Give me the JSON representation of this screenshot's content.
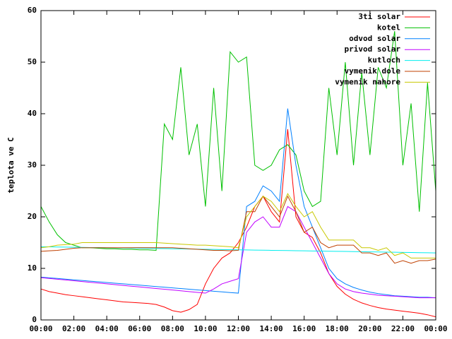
{
  "chart_data": {
    "type": "line",
    "ylabel": "teplota ve C",
    "x": [
      0,
      0.5,
      1,
      1.5,
      2,
      2.5,
      3,
      3.5,
      4,
      4.5,
      5,
      5.5,
      6,
      6.5,
      7,
      7.5,
      8,
      8.5,
      9,
      9.5,
      10,
      10.5,
      11,
      11.5,
      12,
      12.5,
      13,
      13.5,
      14,
      14.5,
      15,
      15.5,
      16,
      16.5,
      17,
      17.5,
      18,
      18.5,
      19,
      19.5,
      20,
      20.5,
      21,
      21.5,
      22,
      22.5,
      23,
      23.5,
      24
    ],
    "xlim": [
      0,
      24
    ],
    "xticks": [
      {
        "value": 0,
        "label": "00:00"
      },
      {
        "value": 2,
        "label": "02:00"
      },
      {
        "value": 4,
        "label": "04:00"
      },
      {
        "value": 6,
        "label": "06:00"
      },
      {
        "value": 8,
        "label": "08:00"
      },
      {
        "value": 10,
        "label": "10:00"
      },
      {
        "value": 12,
        "label": "12:00"
      },
      {
        "value": 14,
        "label": "14:00"
      },
      {
        "value": 16,
        "label": "16:00"
      },
      {
        "value": 18,
        "label": "18:00"
      },
      {
        "value": 20,
        "label": "20:00"
      },
      {
        "value": 22,
        "label": "22:00"
      },
      {
        "value": 24,
        "label": "00:00"
      }
    ],
    "ylim": [
      0,
      60
    ],
    "yticks": [
      0,
      10,
      20,
      30,
      40,
      50,
      60
    ],
    "legend": "top-right",
    "series": [
      {
        "name": "3ti solar",
        "color": "#ff0000",
        "values": [
          6,
          5.5,
          5.2,
          4.9,
          4.7,
          4.5,
          4.3,
          4.1,
          3.9,
          3.7,
          3.5,
          3.4,
          3.3,
          3.2,
          3,
          2.5,
          1.8,
          1.5,
          2,
          3,
          7,
          10,
          12,
          13,
          15,
          18,
          22,
          24,
          21,
          19,
          37,
          20,
          17,
          16,
          13,
          9,
          6.5,
          5,
          4,
          3.3,
          2.8,
          2.4,
          2.1,
          1.9,
          1.7,
          1.5,
          1.3,
          1,
          0.6
        ]
      },
      {
        "name": "kotel",
        "color": "#00c000",
        "values": [
          22,
          19,
          16.5,
          15,
          14.5,
          14,
          14,
          13.9,
          13.8,
          13.8,
          13.7,
          13.7,
          13.6,
          13.6,
          13.5,
          38,
          35,
          49,
          32,
          38,
          22,
          45,
          25,
          52,
          50,
          51,
          30,
          29,
          30,
          33,
          34,
          32,
          25,
          22,
          23,
          45,
          32,
          50,
          30,
          48,
          32,
          49,
          45,
          56,
          30,
          42,
          21,
          46,
          25
        ]
      },
      {
        "name": "odvod solar",
        "color": "#0080ff",
        "values": [
          8.3,
          8.17,
          8.04,
          7.91,
          7.78,
          7.65,
          7.52,
          7.39,
          7.26,
          7.13,
          7.0,
          6.87,
          6.74,
          6.61,
          6.48,
          6.35,
          6.22,
          6.09,
          5.96,
          5.83,
          5.7,
          5.57,
          5.44,
          5.31,
          5.2,
          22,
          23,
          26,
          25,
          23,
          41,
          30,
          22,
          18,
          14,
          10,
          8,
          7,
          6.3,
          5.8,
          5.4,
          5.1,
          4.9,
          4.7,
          4.6,
          4.5,
          4.4,
          4.4,
          4.3
        ]
      },
      {
        "name": "privod solar",
        "color": "#c000ff",
        "values": [
          8.2,
          8.05,
          7.9,
          7.75,
          7.6,
          7.45,
          7.3,
          7.15,
          7.0,
          6.85,
          6.7,
          6.55,
          6.4,
          6.25,
          6.1,
          5.95,
          5.8,
          5.65,
          5.5,
          5.35,
          5.2,
          6,
          7,
          7.5,
          8,
          17,
          19,
          20,
          18,
          18,
          22,
          21,
          18,
          15,
          12,
          9,
          7,
          6,
          5.5,
          5.2,
          5,
          4.8,
          4.7,
          4.6,
          4.5,
          4.4,
          4.3,
          4.3,
          4.3
        ]
      },
      {
        "name": "kutloch",
        "color": "#00eeee",
        "values": [
          14.2,
          14.18,
          14.15,
          14.13,
          14.1,
          14.08,
          14.05,
          14.03,
          14,
          13.98,
          13.95,
          13.93,
          13.9,
          13.88,
          13.85,
          13.83,
          13.8,
          13.78,
          13.75,
          13.73,
          13.7,
          13.68,
          13.65,
          13.63,
          13.6,
          13.58,
          13.55,
          13.53,
          13.5,
          13.48,
          13.45,
          13.43,
          13.4,
          13.38,
          13.35,
          13.33,
          13.3,
          13.28,
          13.25,
          13.23,
          13.2,
          13.18,
          13.15,
          13.13,
          13.1,
          13.08,
          13.05,
          13.03,
          13
        ]
      },
      {
        "name": "vymenik dole",
        "color": "#c04000",
        "values": [
          13.3,
          13.4,
          13.5,
          13.7,
          13.9,
          14,
          14,
          14,
          14,
          14,
          14,
          14,
          14,
          14,
          14,
          14,
          14,
          13.9,
          13.8,
          13.7,
          13.6,
          13.5,
          13.5,
          13.4,
          13.5,
          21,
          21,
          24,
          22,
          20,
          24,
          21,
          17,
          18,
          15,
          14,
          14.5,
          14.5,
          14.5,
          13,
          13,
          12.5,
          13,
          11,
          11.5,
          11,
          11.5,
          11.5,
          11.8
        ]
      },
      {
        "name": "vymenik nahore",
        "color": "#c8c800",
        "values": [
          14,
          14.2,
          14.5,
          14.6,
          14.7,
          15,
          15,
          15,
          15,
          15,
          15,
          15,
          15,
          15,
          15,
          14.9,
          14.8,
          14.7,
          14.6,
          14.5,
          14.5,
          14.4,
          14.3,
          14.2,
          14,
          20,
          22,
          24,
          23,
          21,
          24.5,
          22,
          20,
          21,
          18,
          15.5,
          15.5,
          15.5,
          15.5,
          14,
          14,
          13.5,
          14,
          12.5,
          13,
          12,
          12,
          12,
          12
        ]
      }
    ]
  }
}
